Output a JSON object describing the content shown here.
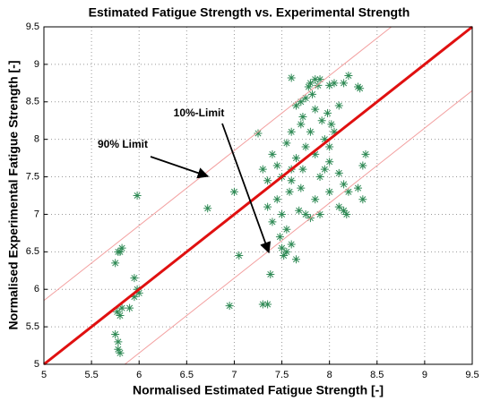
{
  "chart_data": {
    "type": "scatter",
    "title": "Estimated Fatigue Strength vs. Experimental Strength",
    "xlabel": "Normalised Estimated Fatigue Strength [-]",
    "ylabel": "Normalised Experimental Fatigue Strength [-]",
    "xlim": [
      5,
      9.5
    ],
    "ylim": [
      5,
      9.5
    ],
    "xticks": [
      5,
      5.5,
      6,
      6.5,
      7,
      7.5,
      8,
      8.5,
      9,
      9.5
    ],
    "yticks": [
      5,
      5.5,
      6,
      6.5,
      7,
      7.5,
      8,
      8.5,
      9,
      9.5
    ],
    "grid": true,
    "color": "#2f8a55",
    "x": [
      5.78,
      5.8,
      5.78,
      5.75,
      5.8,
      5.77,
      5.82,
      5.75,
      5.8,
      5.82,
      5.78,
      5.9,
      5.95,
      5.98,
      6.0,
      5.95,
      5.98,
      6.72,
      7.0,
      7.05,
      6.95,
      7.25,
      7.3,
      7.35,
      7.38,
      7.4,
      7.45,
      7.5,
      7.35,
      7.3,
      7.35,
      7.4,
      7.48,
      7.5,
      7.52,
      7.55,
      7.55,
      7.5,
      7.45,
      7.58,
      7.6,
      7.65,
      7.55,
      7.6,
      7.65,
      7.6,
      7.7,
      7.72,
      7.75,
      7.78,
      7.8,
      7.82,
      7.85,
      7.88,
      7.9,
      7.85,
      7.8,
      7.75,
      7.72,
      7.7,
      7.68,
      7.75,
      7.8,
      7.85,
      7.9,
      7.95,
      8.0,
      8.0,
      7.95,
      7.92,
      7.98,
      8.02,
      8.05,
      8.1,
      8.0,
      8.05,
      8.15,
      8.2,
      8.3,
      8.32,
      8.1,
      8.15,
      8.2,
      8.1,
      8.15,
      8.18,
      8.3,
      8.35,
      8.35,
      8.38,
      7.65,
      7.6,
      7.7,
      7.6,
      7.9,
      8.0,
      7.85
    ],
    "values": [
      5.2,
      5.15,
      5.3,
      5.4,
      5.65,
      5.7,
      5.75,
      6.35,
      6.5,
      6.55,
      6.5,
      5.75,
      5.9,
      6.0,
      5.95,
      6.15,
      7.25,
      7.08,
      7.3,
      6.45,
      5.78,
      8.08,
      5.8,
      5.8,
      6.2,
      7.8,
      7.65,
      7.5,
      7.45,
      7.6,
      7.1,
      6.9,
      6.7,
      6.55,
      6.45,
      6.5,
      6.8,
      7.0,
      7.2,
      7.3,
      7.6,
      7.75,
      7.95,
      8.1,
      8.45,
      8.82,
      8.5,
      8.3,
      8.55,
      8.7,
      8.75,
      8.6,
      8.8,
      8.72,
      8.8,
      8.4,
      8.1,
      7.9,
      7.6,
      7.35,
      7.05,
      7.0,
      6.95,
      7.2,
      7.5,
      7.6,
      7.3,
      7.9,
      8.0,
      8.25,
      8.35,
      8.2,
      8.1,
      8.45,
      8.72,
      8.75,
      8.75,
      8.85,
      8.7,
      8.68,
      7.55,
      7.4,
      7.3,
      7.1,
      7.05,
      7.0,
      7.35,
      7.2,
      7.65,
      7.8,
      6.4,
      6.6,
      8.2,
      7.45,
      7.0,
      7.7,
      7.8
    ],
    "lines": [
      {
        "x": [
          5,
          8.65
        ],
        "values": [
          5.85,
          9.5
        ],
        "color": "#f3a0a0",
        "width": 1
      },
      {
        "x": [
          5.85,
          9.5
        ],
        "values": [
          5,
          8.65
        ],
        "color": "#f3a0a0",
        "width": 1
      },
      {
        "x": [
          5,
          9.5
        ],
        "values": [
          5,
          9.5
        ],
        "color": "#e01010",
        "width": 3
      }
    ],
    "annotations": [
      {
        "text": "10%-Limit"
      },
      {
        "text": "90% Limit"
      }
    ]
  }
}
